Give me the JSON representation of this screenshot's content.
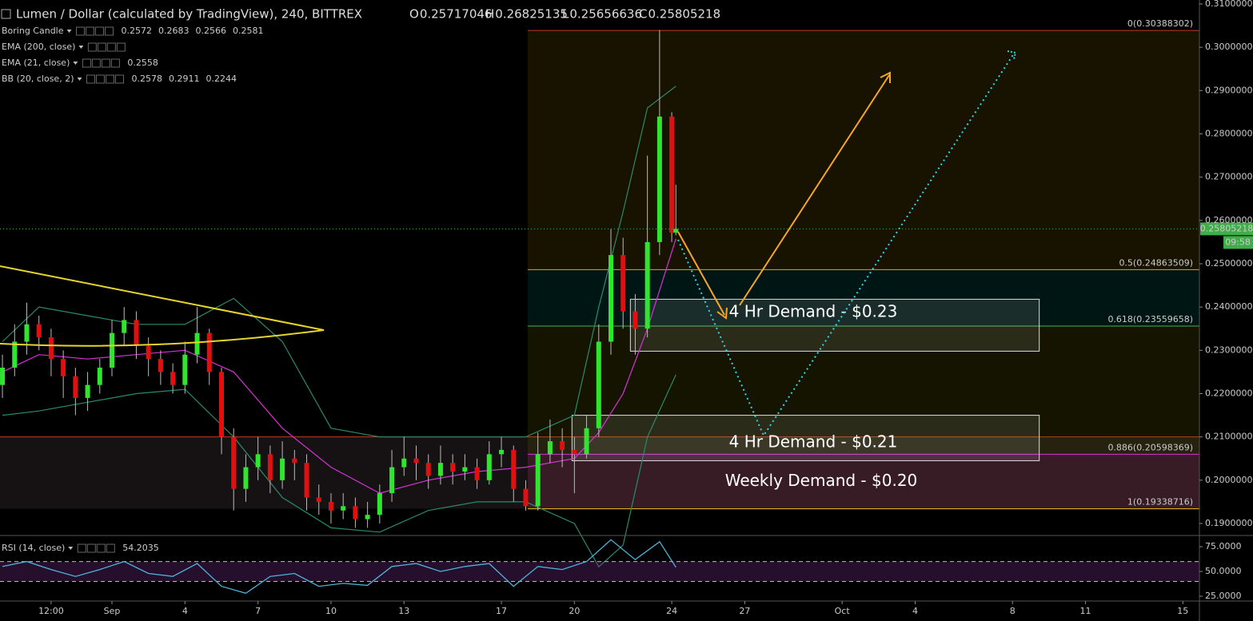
{
  "chart_data": {
    "type": "candlestick",
    "title": "Lumen / Dollar (calculated by TradingView), 240, BITTREX",
    "ohlc_letters": [
      "O",
      "H",
      "L",
      "C"
    ],
    "up_color": "#2ee62e",
    "down_color": "#e01010",
    "x": [
      -4.5,
      -4,
      -3.5,
      -3,
      -2.5,
      -2,
      -1.5,
      -1,
      -0.5,
      0,
      0.5,
      1,
      1.5,
      2,
      2.5,
      3,
      3.5,
      4,
      4.5,
      5,
      5.5,
      6,
      6.5,
      7,
      7.5,
      8,
      8.5,
      9,
      9.5,
      10,
      10.5,
      11,
      11.5,
      12,
      12.5,
      13,
      13.5,
      14,
      14.5,
      15,
      15.5,
      16,
      16.5,
      17,
      17.5,
      18,
      18.5,
      19,
      19.5,
      20,
      20.5,
      21,
      21.5,
      22,
      22.5,
      23,
      23.17
    ],
    "open": [
      0.222,
      0.226,
      0.232,
      0.236,
      0.233,
      0.228,
      0.224,
      0.219,
      0.222,
      0.226,
      0.234,
      0.237,
      0.231,
      0.228,
      0.225,
      0.222,
      0.229,
      0.234,
      0.225,
      0.21,
      0.198,
      0.203,
      0.206,
      0.2,
      0.205,
      0.204,
      0.196,
      0.195,
      0.193,
      0.194,
      0.191,
      0.192,
      0.197,
      0.203,
      0.205,
      0.204,
      0.201,
      0.204,
      0.202,
      0.203,
      0.2,
      0.206,
      0.207,
      0.198,
      0.194,
      0.206,
      0.209,
      0.207,
      0.206,
      0.212,
      0.232,
      0.252,
      0.239,
      0.235,
      0.255,
      0.284,
      0.25717046
    ],
    "high": [
      0.229,
      0.236,
      0.241,
      0.238,
      0.235,
      0.23,
      0.226,
      0.225,
      0.228,
      0.237,
      0.24,
      0.239,
      0.233,
      0.23,
      0.227,
      0.232,
      0.24,
      0.235,
      0.226,
      0.212,
      0.206,
      0.21,
      0.208,
      0.209,
      0.207,
      0.206,
      0.199,
      0.197,
      0.197,
      0.196,
      0.195,
      0.199,
      0.207,
      0.21,
      0.208,
      0.206,
      0.208,
      0.206,
      0.206,
      0.205,
      0.209,
      0.21,
      0.208,
      0.2,
      0.211,
      0.214,
      0.212,
      0.21,
      0.215,
      0.236,
      0.258,
      0.256,
      0.243,
      0.275,
      0.304,
      0.285,
      0.26825135
    ],
    "low": [
      0.219,
      0.224,
      0.229,
      0.23,
      0.224,
      0.219,
      0.215,
      0.216,
      0.22,
      0.224,
      0.231,
      0.228,
      0.224,
      0.222,
      0.22,
      0.22,
      0.227,
      0.222,
      0.206,
      0.193,
      0.195,
      0.2,
      0.197,
      0.198,
      0.2,
      0.193,
      0.192,
      0.19,
      0.191,
      0.189,
      0.189,
      0.19,
      0.195,
      0.201,
      0.2,
      0.198,
      0.199,
      0.199,
      0.2,
      0.198,
      0.199,
      0.203,
      0.195,
      0.193,
      0.193,
      0.204,
      0.203,
      0.197,
      0.205,
      0.21,
      0.229,
      0.235,
      0.229,
      0.233,
      0.252,
      0.255,
      0.25656636
    ],
    "close": [
      0.226,
      0.232,
      0.236,
      0.233,
      0.228,
      0.224,
      0.219,
      0.222,
      0.226,
      0.234,
      0.237,
      0.231,
      0.228,
      0.225,
      0.222,
      0.229,
      0.234,
      0.225,
      0.21,
      0.198,
      0.203,
      0.206,
      0.2,
      0.205,
      0.204,
      0.196,
      0.195,
      0.193,
      0.194,
      0.191,
      0.192,
      0.197,
      0.203,
      0.205,
      0.204,
      0.201,
      0.204,
      0.202,
      0.203,
      0.2,
      0.206,
      0.207,
      0.198,
      0.194,
      0.206,
      0.209,
      0.207,
      0.206,
      0.212,
      0.232,
      0.252,
      0.239,
      0.235,
      0.255,
      0.284,
      0.25717,
      0.25805218
    ],
    "xlim": [
      -4.6,
      44.68
    ],
    "ylim": [
      0.18723,
      0.31092
    ],
    "xticks": [
      {
        "value": -2.5,
        "label": "12:00"
      },
      {
        "value": 0,
        "label": "Sep"
      },
      {
        "value": 3,
        "label": "4"
      },
      {
        "value": 6,
        "label": "7"
      },
      {
        "value": 9,
        "label": "10"
      },
      {
        "value": 12,
        "label": "13"
      },
      {
        "value": 16,
        "label": "17"
      },
      {
        "value": 19,
        "label": "20"
      },
      {
        "value": 23,
        "label": "24"
      },
      {
        "value": 26,
        "label": "27"
      },
      {
        "value": 30,
        "label": "Oct"
      },
      {
        "value": 33,
        "label": "4"
      },
      {
        "value": 37,
        "label": "8"
      },
      {
        "value": 40,
        "label": "11"
      },
      {
        "value": 44,
        "label": "15"
      }
    ],
    "yticks": [
      {
        "value": 0.19,
        "label": "0.19000000"
      },
      {
        "value": 0.2,
        "label": "0.20000000"
      },
      {
        "value": 0.21,
        "label": "0.21000000"
      },
      {
        "value": 0.22,
        "label": "0.22000000"
      },
      {
        "value": 0.23,
        "label": "0.23000000"
      },
      {
        "value": 0.24,
        "label": "0.24000000"
      },
      {
        "value": 0.25,
        "label": "0.25000000"
      },
      {
        "value": 0.26,
        "label": "0.26000000"
      },
      {
        "value": 0.27,
        "label": "0.27000000"
      },
      {
        "value": 0.28,
        "label": "0.28000000"
      },
      {
        "value": 0.29,
        "label": "0.29000000"
      },
      {
        "value": 0.3,
        "label": "0.30000000"
      },
      {
        "value": 0.31,
        "label": "0.31000000"
      }
    ],
    "indicator_x": [
      -4.5,
      -3,
      -1,
      1,
      3,
      5,
      7,
      9,
      11,
      13,
      15,
      17,
      19,
      20,
      21,
      22,
      23.17
    ],
    "ema21": {
      "color": "#d633d6",
      "values": [
        0.225,
        0.229,
        0.228,
        0.229,
        0.23,
        0.225,
        0.212,
        0.203,
        0.197,
        0.2,
        0.202,
        0.203,
        0.205,
        0.211,
        0.22,
        0.235,
        0.2558
      ]
    },
    "bb_upper": {
      "color": "#2a8a6a",
      "values": [
        0.232,
        0.24,
        0.238,
        0.236,
        0.236,
        0.242,
        0.232,
        0.212,
        0.21,
        0.21,
        0.21,
        0.21,
        0.215,
        0.24,
        0.262,
        0.286,
        0.291
      ]
    },
    "bb_lower": {
      "color": "#2a8a6a",
      "values": [
        0.215,
        0.216,
        0.218,
        0.22,
        0.221,
        0.21,
        0.196,
        0.189,
        0.188,
        0.193,
        0.195,
        0.195,
        0.19,
        0.18,
        0.185,
        0.21,
        0.2244
      ]
    },
    "fib_start": 17.08,
    "fib": [
      {
        "label": "0(0.30388302)",
        "value": 0.30388302,
        "color": "#c0392b",
        "fill": "rgba(110,80,0,0.22)"
      },
      {
        "label": "0.5(0.24863509)",
        "value": 0.24863509,
        "color": "#f39c12",
        "fill": "rgba(0,110,100,0.2)"
      },
      {
        "label": "0.618(0.23559658)",
        "value": 0.23559658,
        "color": "#4caf50",
        "fill": "rgba(110,110,0,0.18)"
      },
      {
        "label": "0.886(0.20598369)",
        "value": 0.20598369,
        "color": "#d633d6",
        "fill": "rgba(160,60,90,0.25)"
      },
      {
        "label": "1(0.19338716)",
        "value": 0.19338716,
        "color": "#f1c40f",
        "fill": "rgba(0,0,0,0)"
      }
    ],
    "zones": [
      {
        "label": "4 Hr Demand - $0.23",
        "x": [
          21.3,
          38.1
        ],
        "y": [
          0.2298,
          0.2418
        ],
        "fill": "rgba(255,255,255,0.1)",
        "stroke": "#dddddd"
      },
      {
        "label": "4 Hr Demand - $0.21",
        "x": [
          18.9,
          38.1
        ],
        "y": [
          0.2045,
          0.215
        ],
        "fill": "rgba(255,255,255,0.1)",
        "stroke": "#dddddd"
      },
      {
        "label": "Weekly Demand - $0.20",
        "x": [
          -4.6,
          44.68
        ],
        "y": [
          0.1934,
          0.21
        ],
        "fill": "rgba(150,120,130,0.15)",
        "stroke": "#c0392b"
      }
    ],
    "timer": "09:58",
    "legend": [
      {
        "name": "Boring Candle",
        "values": [
          "0.2572",
          "0.2683",
          "0.2566",
          "0.2581"
        ],
        "colors": [
          "#4dd0e1",
          "#4dd0e1",
          "#4dd0e1",
          "#4dd0e1"
        ]
      },
      {
        "name": "EMA (200, close)",
        "values": [],
        "colors": []
      },
      {
        "name": "EMA (21, close)",
        "values": [
          "0.2558"
        ],
        "colors": [
          "#d633d6"
        ]
      },
      {
        "name": "BB (20, close, 2)",
        "values": [
          "0.2578",
          "0.2911",
          "0.2244"
        ],
        "colors": [
          "#b0413e",
          "#2a8a8a",
          "#2a8a8a"
        ]
      }
    ],
    "rsi": {
      "name": "RSI (14, close)",
      "color": "#4fb3d9",
      "x": [
        -4.5,
        -3.5,
        -2.5,
        -1.5,
        -0.5,
        0.5,
        1.5,
        2.5,
        3.5,
        4.5,
        5.5,
        6.5,
        7.5,
        8.5,
        9.5,
        10.5,
        11.5,
        12.5,
        13.5,
        14.5,
        15.5,
        16.5,
        17.5,
        18.5,
        19.5,
        20.5,
        21.5,
        22.5,
        23.17
      ],
      "values": [
        55,
        60,
        52,
        45,
        52,
        60,
        48,
        45,
        58,
        35,
        28,
        45,
        48,
        35,
        38,
        36,
        55,
        58,
        50,
        55,
        58,
        35,
        55,
        52,
        60,
        82,
        62,
        80,
        54.2035
      ],
      "ylim": [
        20.2,
        84.7
      ],
      "yticks": [
        {
          "value": 75,
          "label": "75.0000"
        },
        {
          "value": 50,
          "label": "50.0000"
        },
        {
          "value": 25,
          "label": "25.0000"
        }
      ],
      "band": [
        40,
        60
      ]
    }
  }
}
